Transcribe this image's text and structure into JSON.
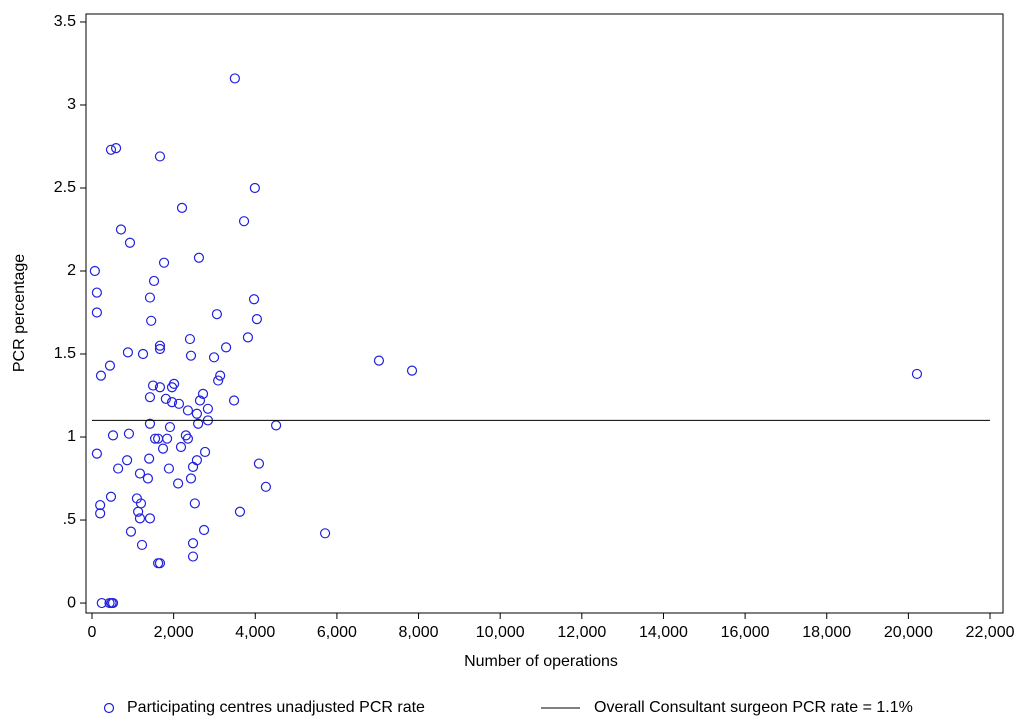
{
  "chart_data": {
    "type": "scatter",
    "x_label": "Number of operations",
    "y_label": "PCR percentage",
    "xlim": [
      -147,
      22318
    ],
    "ylim": [
      -0.06,
      3.548
    ],
    "xticks": [
      0,
      {
        "value": 2000,
        "label": "2,000"
      },
      {
        "value": 4000,
        "label": "4,000"
      },
      {
        "value": 6000,
        "label": "6,000"
      },
      {
        "value": 8000,
        "label": "8,000"
      },
      {
        "value": 10000,
        "label": "10,000"
      },
      {
        "value": 12000,
        "label": "12,000"
      },
      {
        "value": 14000,
        "label": "14,000"
      },
      {
        "value": 16000,
        "label": "16,000"
      },
      {
        "value": 18000,
        "label": "18,000"
      },
      {
        "value": 20000,
        "label": "20,000"
      },
      {
        "value": 22000,
        "label": "22,000"
      }
    ],
    "yticks": [
      0,
      {
        "value": 0.5,
        "label": ".5"
      },
      1,
      1.5,
      2,
      2.5,
      3,
      3.5
    ],
    "series": [
      {
        "name": "Participating centres unadjusted PCR rate",
        "color": "#2020e0",
        "x": [
          70,
          120,
          120,
          220,
          120,
          200,
          200,
          240,
          430,
          480,
          515,
          440,
          465,
          590,
          515,
          465,
          710,
          640,
          860,
          880,
          905,
          930,
          955,
          1100,
          1130,
          1175,
          1200,
          1175,
          1225,
          1250,
          1370,
          1420,
          1400,
          1420,
          1420,
          1450,
          1420,
          1495,
          1520,
          1545,
          1620,
          1665,
          1665,
          1665,
          1665,
          1665,
          1620,
          1740,
          1765,
          1810,
          1840,
          1910,
          1885,
          1960,
          1960,
          2010,
          2130,
          2110,
          2180,
          2205,
          2300,
          2350,
          2350,
          2400,
          2425,
          2425,
          2475,
          2475,
          2475,
          2520,
          2570,
          2570,
          2620,
          2600,
          2645,
          2720,
          2745,
          2770,
          2840,
          2840,
          2990,
          3060,
          3090,
          3140,
          3285,
          3480,
          3500,
          3625,
          3725,
          3820,
          3970,
          3990,
          4040,
          4090,
          4260,
          4510,
          5710,
          7030,
          7840,
          20210
        ],
        "y": [
          2.0,
          1.87,
          1.75,
          1.37,
          0.9,
          0.59,
          0.54,
          0,
          0,
          0,
          0,
          1.43,
          2.73,
          2.74,
          1.01,
          0.64,
          2.25,
          0.81,
          0.86,
          1.51,
          1.02,
          2.17,
          0.43,
          0.63,
          0.55,
          0.51,
          0.6,
          0.78,
          0.35,
          1.5,
          0.75,
          1.24,
          0.87,
          1.08,
          1.84,
          1.7,
          0.51,
          1.31,
          1.94,
          0.99,
          0.99,
          2.69,
          1.55,
          1.53,
          1.3,
          0.24,
          0.24,
          0.93,
          2.05,
          1.23,
          0.99,
          1.06,
          0.81,
          1.21,
          1.3,
          1.32,
          1.2,
          0.72,
          0.94,
          2.38,
          1.01,
          0.99,
          1.16,
          1.59,
          1.49,
          0.75,
          0.82,
          0.36,
          0.28,
          0.6,
          1.14,
          0.86,
          2.08,
          1.08,
          1.22,
          1.26,
          0.44,
          0.91,
          1.17,
          1.1,
          1.48,
          1.74,
          1.34,
          1.37,
          1.54,
          1.22,
          3.16,
          0.55,
          2.3,
          1.6,
          1.83,
          2.5,
          1.71,
          0.84,
          0.7,
          1.07,
          0.42,
          1.46,
          1.4,
          1.38
        ]
      }
    ],
    "reference_line": {
      "name": "Overall Consultant surgeon PCR rate = 1.1%",
      "value": 1.1,
      "xrange": [
        0,
        22000
      ],
      "color": "#000000"
    }
  }
}
